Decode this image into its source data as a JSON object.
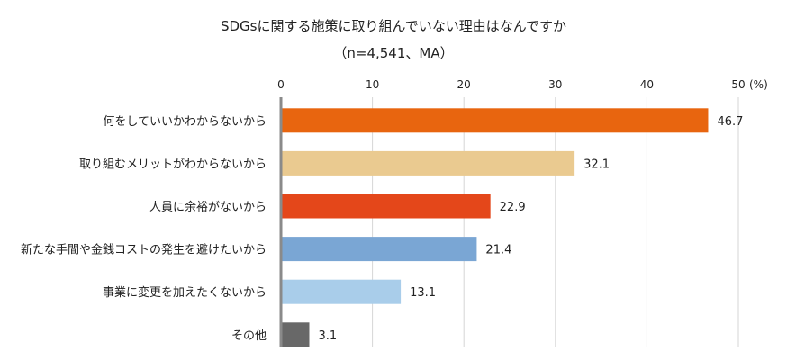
{
  "chart_data": {
    "type": "bar",
    "orientation": "horizontal",
    "title": "SDGsに関する施策に取り組んでいない理由はなんですか",
    "subtitle": "（n=4,541、MA）",
    "x_unit": "(%)",
    "xlim": [
      0,
      50
    ],
    "x_ticks": [
      "0",
      "10",
      "20",
      "30",
      "40",
      "50"
    ],
    "grid": "vertical",
    "categories": [
      "何をしていいかわからないから",
      "取り組むメリットがわからないから",
      "人員に余裕がないから",
      "新たな手間や金銭コストの発生を避けたいから",
      "事業に変更を加えたくないから",
      "その他"
    ],
    "values": [
      46.7,
      32.1,
      22.9,
      21.4,
      13.1,
      3.1
    ],
    "value_labels": [
      "46.7",
      "32.1",
      "22.9",
      "21.4",
      "13.1",
      "3.1"
    ],
    "colors": [
      "#E8650F",
      "#EACA90",
      "#E4471A",
      "#7AA6D4",
      "#A9CDEA",
      "#686868"
    ]
  }
}
